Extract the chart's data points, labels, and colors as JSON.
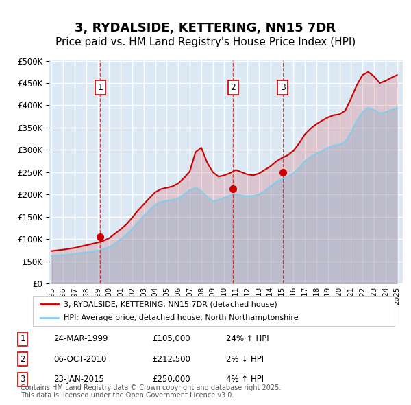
{
  "title": "3, RYDALSIDE, KETTERING, NN15 7DR",
  "subtitle": "Price paid vs. HM Land Registry's House Price Index (HPI)",
  "title_fontsize": 13,
  "subtitle_fontsize": 11,
  "bg_color": "#dce9f5",
  "plot_bg_color": "#dce9f5",
  "grid_color": "#ffffff",
  "ylim": [
    0,
    500000
  ],
  "yticks": [
    0,
    50000,
    100000,
    150000,
    200000,
    250000,
    300000,
    350000,
    400000,
    450000,
    500000
  ],
  "ylabel_format": "£{0}K",
  "legend_label_red": "3, RYDALSIDE, KETTERING, NN15 7DR (detached house)",
  "legend_label_blue": "HPI: Average price, detached house, North Northamptonshire",
  "footer_text": "Contains HM Land Registry data © Crown copyright and database right 2025.\nThis data is licensed under the Open Government Licence v3.0.",
  "transactions": [
    {
      "num": 1,
      "date": "24-MAR-1999",
      "price": 105000,
      "hpi_rel": "24% ↑ HPI",
      "year": 1999.23
    },
    {
      "num": 2,
      "date": "06-OCT-2010",
      "price": 212500,
      "hpi_rel": "2% ↓ HPI",
      "year": 2010.77
    },
    {
      "num": 3,
      "date": "23-JAN-2015",
      "price": 250000,
      "hpi_rel": "4% ↑ HPI",
      "year": 2015.07
    }
  ],
  "hpi_x": [
    1995,
    1995.5,
    1996,
    1996.5,
    1997,
    1997.5,
    1998,
    1998.5,
    1999,
    1999.5,
    2000,
    2000.5,
    2001,
    2001.5,
    2002,
    2002.5,
    2003,
    2003.5,
    2004,
    2004.5,
    2005,
    2005.5,
    2006,
    2006.5,
    2007,
    2007.5,
    2008,
    2008.5,
    2009,
    2009.5,
    2010,
    2010.5,
    2011,
    2011.5,
    2012,
    2012.5,
    2013,
    2013.5,
    2014,
    2014.5,
    2015,
    2015.5,
    2016,
    2016.5,
    2017,
    2017.5,
    2018,
    2018.5,
    2019,
    2019.5,
    2020,
    2020.5,
    2021,
    2021.5,
    2022,
    2022.5,
    2023,
    2023.5,
    2024,
    2024.5,
    2025
  ],
  "hpi_y": [
    62000,
    63000,
    64000,
    65500,
    67000,
    68500,
    70000,
    72000,
    74000,
    77000,
    82000,
    90000,
    100000,
    110000,
    123000,
    138000,
    152000,
    165000,
    177000,
    183000,
    186000,
    188000,
    192000,
    200000,
    210000,
    215000,
    208000,
    195000,
    185000,
    188000,
    193000,
    198000,
    200000,
    198000,
    196000,
    197000,
    200000,
    208000,
    218000,
    228000,
    235000,
    240000,
    248000,
    260000,
    275000,
    285000,
    292000,
    298000,
    305000,
    310000,
    312000,
    318000,
    340000,
    365000,
    385000,
    395000,
    390000,
    382000,
    385000,
    390000,
    395000
  ],
  "price_x": [
    1995,
    1995.5,
    1996,
    1996.5,
    1997,
    1997.5,
    1998,
    1998.5,
    1999,
    1999.5,
    2000,
    2000.5,
    2001,
    2001.5,
    2002,
    2002.5,
    2003,
    2003.5,
    2004,
    2004.5,
    2005,
    2005.5,
    2006,
    2006.5,
    2007,
    2007.5,
    2008,
    2008.5,
    2009,
    2009.5,
    2010,
    2010.5,
    2011,
    2011.5,
    2012,
    2012.5,
    2013,
    2013.5,
    2014,
    2014.5,
    2015,
    2015.5,
    2016,
    2016.5,
    2017,
    2017.5,
    2018,
    2018.5,
    2019,
    2019.5,
    2020,
    2020.5,
    2021,
    2021.5,
    2022,
    2022.5,
    2023,
    2023.5,
    2024,
    2024.5,
    2025
  ],
  "price_y": [
    73000,
    74500,
    76000,
    78000,
    80000,
    83000,
    86000,
    89000,
    92000,
    96000,
    102000,
    112000,
    122000,
    133000,
    148000,
    164000,
    178000,
    192000,
    205000,
    212000,
    215000,
    218000,
    225000,
    237000,
    252000,
    295000,
    305000,
    272000,
    250000,
    240000,
    243000,
    248000,
    255000,
    250000,
    245000,
    243000,
    247000,
    255000,
    263000,
    274000,
    282000,
    288000,
    298000,
    315000,
    335000,
    348000,
    358000,
    366000,
    373000,
    378000,
    380000,
    388000,
    415000,
    445000,
    468000,
    475000,
    465000,
    450000,
    455000,
    462000,
    468000
  ]
}
